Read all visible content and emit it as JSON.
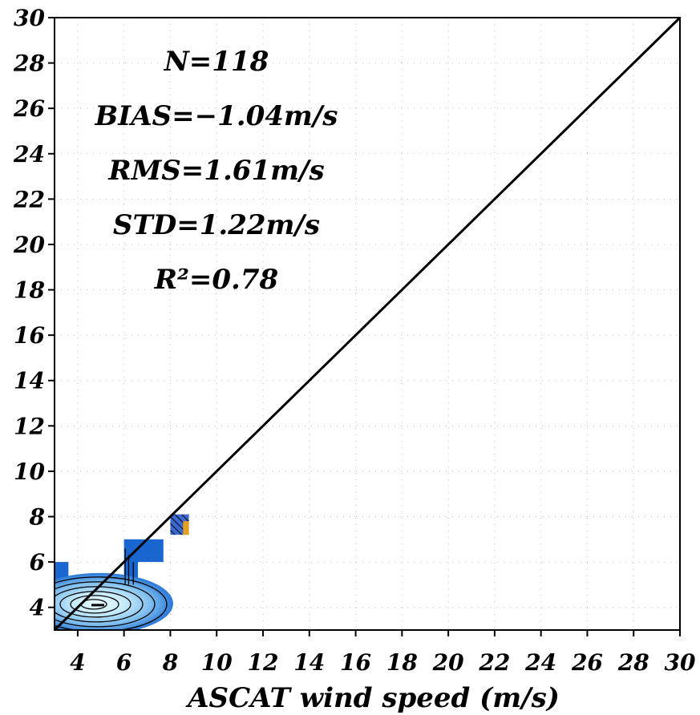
{
  "chart_data": {
    "type": "heatmap",
    "xlabel": "ASCAT wind speed (m/s)",
    "ylabel": "",
    "xlim": [
      3,
      30
    ],
    "ylim": [
      3,
      30
    ],
    "x_ticks": [
      4,
      6,
      8,
      10,
      12,
      14,
      16,
      18,
      20,
      22,
      24,
      26,
      28,
      30
    ],
    "y_ticks": [
      4,
      6,
      8,
      10,
      12,
      14,
      16,
      18,
      20,
      22,
      24,
      26,
      28,
      30
    ],
    "grid": "dotted",
    "reference_line": {
      "from": [
        3,
        3
      ],
      "to": [
        30,
        30
      ]
    },
    "stats": [
      "N=118",
      "BIAS=−1.04m/s",
      "RMS=1.61m/s",
      "STD=1.22m/s",
      "R²=0.78"
    ],
    "density_cells": [
      {
        "x": [
          3,
          3.6
        ],
        "y": [
          5,
          6
        ],
        "level": 1
      },
      {
        "x": [
          3,
          6.6
        ],
        "y": [
          3,
          5
        ],
        "level": 1
      },
      {
        "x": [
          6.6,
          7.7
        ],
        "y": [
          6,
          7
        ],
        "level": 1
      },
      {
        "x": [
          6,
          6.6
        ],
        "y": [
          5,
          7
        ],
        "level": 1
      },
      {
        "x": [
          8,
          8.8
        ],
        "y": [
          7.2,
          8.1
        ],
        "level": 2
      }
    ],
    "density_peak": {
      "x": 4.8,
      "y": 4.1
    },
    "colors": {
      "dense_low": "#1a66d0",
      "dense_mid": "#6fb3ec",
      "dense_high": "#d9f4ff",
      "hatch_warm": "#e0a020"
    }
  }
}
